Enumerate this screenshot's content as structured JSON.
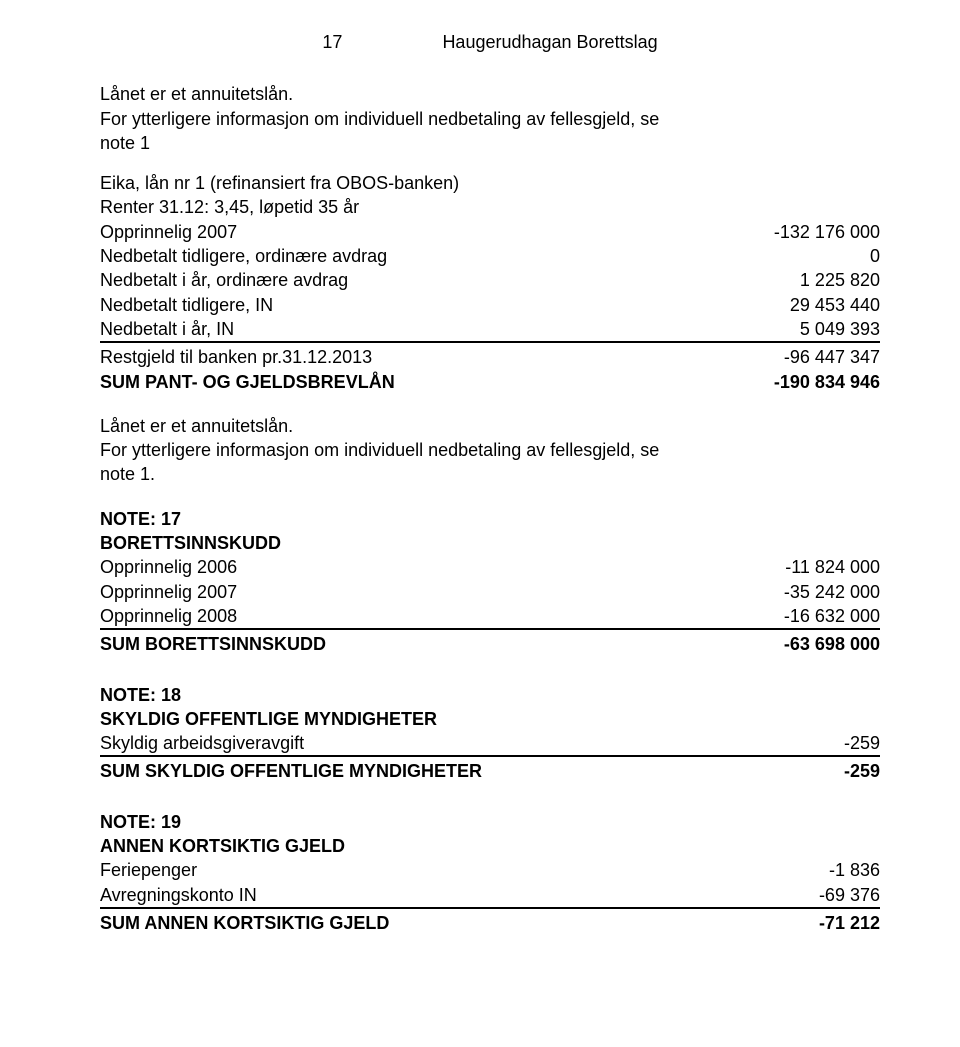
{
  "header": {
    "page_number": "17",
    "title": "Haugerudhagan Borettslag"
  },
  "intro1": {
    "line1": "Lånet er et annuitetslån.",
    "line2": "For ytterligere informasjon om individuell nedbetaling av fellesgjeld, se",
    "line3": "note 1"
  },
  "loan2": {
    "title": "Eika, lån nr 1 (refinansiert fra OBOS-banken)",
    "rate": "Renter 31.12: 3,45, løpetid 35 år",
    "rows": [
      {
        "label": "Opprinnelig 2007",
        "value": "-132 176 000"
      },
      {
        "label": "Nedbetalt tidligere, ordinære avdrag",
        "value": "0"
      },
      {
        "label": "Nedbetalt i år, ordinære avdrag",
        "value": "1 225 820"
      },
      {
        "label": "Nedbetalt tidligere, IN",
        "value": "29 453 440"
      },
      {
        "label": "Nedbetalt i år, IN",
        "value": "5 049 393"
      }
    ],
    "rest": {
      "label": "Restgjeld til banken pr.31.12.2013",
      "value": "-96 447 347"
    },
    "sum": {
      "label": "SUM PANT- OG GJELDSBREVLÅN",
      "value": "-190 834 946"
    }
  },
  "intro2": {
    "line1": "Lånet er et annuitetslån.",
    "line2": "For ytterligere informasjon om individuell nedbetaling av fellesgjeld, se",
    "line3": "note 1."
  },
  "note17": {
    "title": "NOTE: 17",
    "subtitle": "BORETTSINNSKUDD",
    "rows": [
      {
        "label": "Opprinnelig 2006",
        "value": "-11 824 000"
      },
      {
        "label": "Opprinnelig 2007",
        "value": "-35 242 000"
      },
      {
        "label": "Opprinnelig 2008",
        "value": "-16 632 000"
      }
    ],
    "sum": {
      "label": "SUM BORETTSINNSKUDD",
      "value": "-63 698 000"
    }
  },
  "note18": {
    "title": "NOTE: 18",
    "subtitle": "SKYLDIG OFFENTLIGE MYNDIGHETER",
    "rows": [
      {
        "label": "Skyldig arbeidsgiveravgift",
        "value": "-259"
      }
    ],
    "sum": {
      "label": "SUM SKYLDIG OFFENTLIGE MYNDIGHETER",
      "value": "-259"
    }
  },
  "note19": {
    "title": "NOTE: 19",
    "subtitle": "ANNEN KORTSIKTIG GJELD",
    "rows": [
      {
        "label": "Feriepenger",
        "value": "-1 836"
      },
      {
        "label": "Avregningskonto IN",
        "value": "-69 376"
      }
    ],
    "sum": {
      "label": "SUM ANNEN KORTSIKTIG GJELD",
      "value": "-71 212"
    }
  }
}
